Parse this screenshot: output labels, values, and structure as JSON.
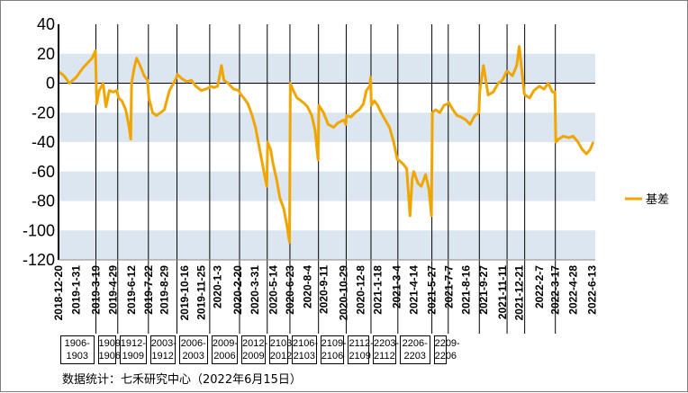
{
  "chart_data": {
    "type": "line",
    "ylim": [
      -120,
      40
    ],
    "yticks": [
      40,
      20,
      0,
      -20,
      -40,
      -60,
      -80,
      -100,
      -120
    ],
    "bands": [
      [
        0,
        20
      ],
      [
        -40,
        -20
      ],
      [
        -80,
        -60
      ],
      [
        -120,
        -100
      ]
    ],
    "x_range": [
      "2018-12-20",
      "2022-06-20"
    ],
    "xticks": [
      "2018-12-20",
      "2019-1-31",
      "2019-3-19",
      "2019-4-29",
      "2019-6-12",
      "2019-7-22",
      "2019-8-29",
      "2019-10-16",
      "2019-11-25",
      "2020-1-3",
      "2020-2-20",
      "2020-3-31",
      "2020-5-14",
      "2020-6-23",
      "2020-8-4",
      "2020-9-11",
      "2020-10-29",
      "2020-12-8",
      "2021-1-18",
      "2021-3-4",
      "2021-4-14",
      "2021-5-27",
      "2021-7-7",
      "2021-8-16",
      "2021-9-27",
      "2021-11-11",
      "2021-12-21",
      "2022-2-7",
      "2022-3-17",
      "2022-4-28",
      "2022-6-13"
    ],
    "roll_dates": [
      "2019-3-19",
      "2019-5-10",
      "2019-7-22",
      "2019-9-28",
      "2019-12-15",
      "2020-2-24",
      "2020-4-30",
      "2020-6-23",
      "2020-8-30",
      "2020-11-4",
      "2021-1-2",
      "2021-3-7",
      "2021-5-27",
      "2021-7-5",
      "2021-9-17",
      "2021-11-22",
      "2022-1-3",
      "2022-3-17"
    ],
    "contracts": [
      "1906-\n1903",
      "1909-\n1906",
      "1912-\n1909",
      "2003-\n1912",
      "2006-\n2003",
      "2009-\n2006",
      "2012-\n2009",
      "2103-\n2012",
      "2106-\n2103",
      "2109-\n2106",
      "2112-\n2109",
      "2203-\n2112",
      "2206-\n2203",
      "2209-\n2206"
    ],
    "series": [
      {
        "name": "基差",
        "color": "#f0a600",
        "points": [
          [
            "2018-12-20",
            8
          ],
          [
            "2019-1-2",
            5
          ],
          [
            "2019-1-15",
            0
          ],
          [
            "2019-1-31",
            4
          ],
          [
            "2019-2-15",
            10
          ],
          [
            "2019-2-28",
            14
          ],
          [
            "2019-3-10",
            17
          ],
          [
            "2019-3-18",
            22
          ],
          [
            "2019-3-21",
            -14
          ],
          [
            "2019-3-27",
            -5
          ],
          [
            "2019-4-5",
            0
          ],
          [
            "2019-4-12",
            -16
          ],
          [
            "2019-4-20",
            -5
          ],
          [
            "2019-4-29",
            -6
          ],
          [
            "2019-5-8",
            -5
          ],
          [
            "2019-5-12",
            -10
          ],
          [
            "2019-5-20",
            -12
          ],
          [
            "2019-5-29",
            -18
          ],
          [
            "2019-6-5",
            -28
          ],
          [
            "2019-6-10",
            -38
          ],
          [
            "2019-6-12",
            0
          ],
          [
            "2019-6-18",
            10
          ],
          [
            "2019-6-24",
            17
          ],
          [
            "2019-7-2",
            12
          ],
          [
            "2019-7-12",
            5
          ],
          [
            "2019-7-20",
            2
          ],
          [
            "2019-7-23",
            -10
          ],
          [
            "2019-8-1",
            -20
          ],
          [
            "2019-8-10",
            -22
          ],
          [
            "2019-8-20",
            -20
          ],
          [
            "2019-8-29",
            -18
          ],
          [
            "2019-9-10",
            -5
          ],
          [
            "2019-9-20",
            0
          ],
          [
            "2019-9-27",
            4
          ],
          [
            "2019-9-29",
            6
          ],
          [
            "2019-10-10",
            3
          ],
          [
            "2019-10-22",
            1
          ],
          [
            "2019-11-1",
            2
          ],
          [
            "2019-11-12",
            -2
          ],
          [
            "2019-11-25",
            -5
          ],
          [
            "2019-12-5",
            -4
          ],
          [
            "2019-12-14",
            -3
          ],
          [
            "2019-12-16",
            -2
          ],
          [
            "2019-12-25",
            -3
          ],
          [
            "2020-1-3",
            -2
          ],
          [
            "2020-1-12",
            12
          ],
          [
            "2020-1-18",
            2
          ],
          [
            "2020-1-28",
            0
          ],
          [
            "2020-2-10",
            -4
          ],
          [
            "2020-2-23",
            -5
          ],
          [
            "2020-2-25",
            -7
          ],
          [
            "2020-3-5",
            -10
          ],
          [
            "2020-3-15",
            -14
          ],
          [
            "2020-3-25",
            -22
          ],
          [
            "2020-4-2",
            -30
          ],
          [
            "2020-4-12",
            -45
          ],
          [
            "2020-4-22",
            -60
          ],
          [
            "2020-4-29",
            -70
          ],
          [
            "2020-5-1",
            -40
          ],
          [
            "2020-5-8",
            -45
          ],
          [
            "2020-5-14",
            -55
          ],
          [
            "2020-5-22",
            -65
          ],
          [
            "2020-5-30",
            -78
          ],
          [
            "2020-6-8",
            -85
          ],
          [
            "2020-6-15",
            -95
          ],
          [
            "2020-6-22",
            -108
          ],
          [
            "2020-6-24",
            0
          ],
          [
            "2020-7-1",
            -5
          ],
          [
            "2020-7-10",
            -10
          ],
          [
            "2020-7-20",
            -12
          ],
          [
            "2020-7-28",
            -14
          ],
          [
            "2020-8-4",
            -16
          ],
          [
            "2020-8-14",
            -22
          ],
          [
            "2020-8-22",
            -32
          ],
          [
            "2020-8-29",
            -52
          ],
          [
            "2020-8-31",
            -15
          ],
          [
            "2020-9-11",
            -20
          ],
          [
            "2020-9-22",
            -28
          ],
          [
            "2020-10-5",
            -30
          ],
          [
            "2020-10-15",
            -27
          ],
          [
            "2020-10-29",
            -25
          ],
          [
            "2020-11-3",
            -28
          ],
          [
            "2020-11-5",
            -22
          ],
          [
            "2020-11-15",
            -23
          ],
          [
            "2020-11-25",
            -20
          ],
          [
            "2020-12-5",
            -18
          ],
          [
            "2020-12-15",
            -14
          ],
          [
            "2020-12-22",
            -5
          ],
          [
            "2020-12-30",
            -2
          ],
          [
            "2021-1-1",
            4
          ],
          [
            "2021-1-3",
            -15
          ],
          [
            "2021-1-10",
            -12
          ],
          [
            "2021-1-18",
            -15
          ],
          [
            "2021-1-26",
            -20
          ],
          [
            "2021-2-5",
            -25
          ],
          [
            "2021-2-15",
            -30
          ],
          [
            "2021-2-25",
            -40
          ],
          [
            "2021-3-6",
            -52
          ],
          [
            "2021-3-8",
            -52
          ],
          [
            "2021-3-20",
            -55
          ],
          [
            "2021-3-28",
            -58
          ],
          [
            "2021-4-5",
            -90
          ],
          [
            "2021-4-10",
            -65
          ],
          [
            "2021-4-14",
            -60
          ],
          [
            "2021-4-24",
            -68
          ],
          [
            "2021-5-2",
            -70
          ],
          [
            "2021-5-12",
            -62
          ],
          [
            "2021-5-20",
            -72
          ],
          [
            "2021-5-26",
            -90
          ],
          [
            "2021-5-28",
            -20
          ],
          [
            "2021-6-5",
            -18
          ],
          [
            "2021-6-15",
            -20
          ],
          [
            "2021-6-25",
            -15
          ],
          [
            "2021-7-4",
            -14
          ],
          [
            "2021-7-6",
            -13
          ],
          [
            "2021-7-16",
            -18
          ],
          [
            "2021-7-26",
            -22
          ],
          [
            "2021-8-5",
            -23
          ],
          [
            "2021-8-16",
            -25
          ],
          [
            "2021-8-26",
            -28
          ],
          [
            "2021-9-6",
            -22
          ],
          [
            "2021-9-16",
            -20
          ],
          [
            "2021-9-18",
            -5
          ],
          [
            "2021-9-27",
            12
          ],
          [
            "2021-10-8",
            -8
          ],
          [
            "2021-10-20",
            -6
          ],
          [
            "2021-11-1",
            0
          ],
          [
            "2021-11-11",
            2
          ],
          [
            "2021-11-21",
            8
          ],
          [
            "2021-11-23",
            8
          ],
          [
            "2021-12-5",
            5
          ],
          [
            "2021-12-15",
            12
          ],
          [
            "2021-12-21",
            25
          ],
          [
            "2022-1-2",
            -7
          ],
          [
            "2022-1-4",
            -8
          ],
          [
            "2022-1-15",
            -10
          ],
          [
            "2022-1-25",
            -5
          ],
          [
            "2022-2-7",
            -2
          ],
          [
            "2022-2-18",
            -4
          ],
          [
            "2022-2-28",
            0
          ],
          [
            "2022-3-10",
            -6
          ],
          [
            "2022-3-16",
            -6
          ],
          [
            "2022-3-18",
            -40
          ],
          [
            "2022-3-25",
            -38
          ],
          [
            "2022-4-5",
            -36
          ],
          [
            "2022-4-18",
            -37
          ],
          [
            "2022-4-28",
            -36
          ],
          [
            "2022-5-10",
            -40
          ],
          [
            "2022-5-20",
            -45
          ],
          [
            "2022-5-30",
            -48
          ],
          [
            "2022-6-8",
            -45
          ],
          [
            "2022-6-15",
            -40
          ]
        ]
      }
    ]
  },
  "legend": {
    "label": "基差"
  },
  "footer": {
    "source": "数据统计：七禾研究中心（2022年6月15日）"
  }
}
